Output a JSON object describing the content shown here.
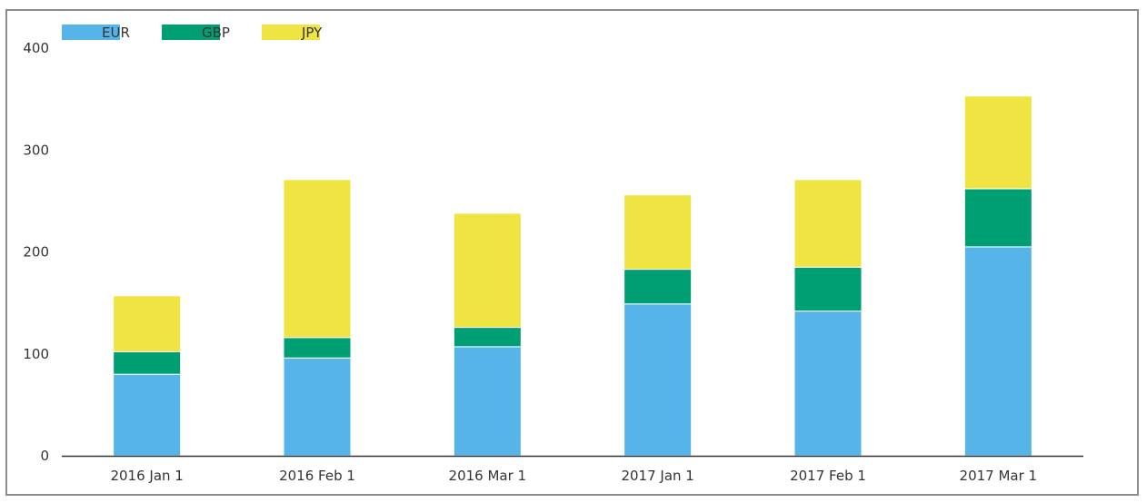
{
  "chart_data": {
    "type": "bar",
    "stacked": true,
    "categories": [
      "2016 Jan 1",
      "2016 Feb 1",
      "2016 Mar 1",
      "2017 Jan 1",
      "2017 Feb 1",
      "2017 Mar 1"
    ],
    "series": [
      {
        "name": "EUR",
        "color": "#56b4e9",
        "values": [
          80,
          96,
          107,
          149,
          142,
          205
        ]
      },
      {
        "name": "GBP",
        "color": "#009e73",
        "values": [
          22,
          20,
          19,
          34,
          43,
          57
        ]
      },
      {
        "name": "JPY",
        "color": "#f0e442",
        "values": [
          55,
          155,
          112,
          73,
          86,
          91
        ]
      }
    ],
    "yticks": [
      "0",
      "100",
      "200",
      "300",
      "400"
    ],
    "ylim": [
      0,
      400
    ],
    "grid": false,
    "legend_position": "top-left"
  }
}
